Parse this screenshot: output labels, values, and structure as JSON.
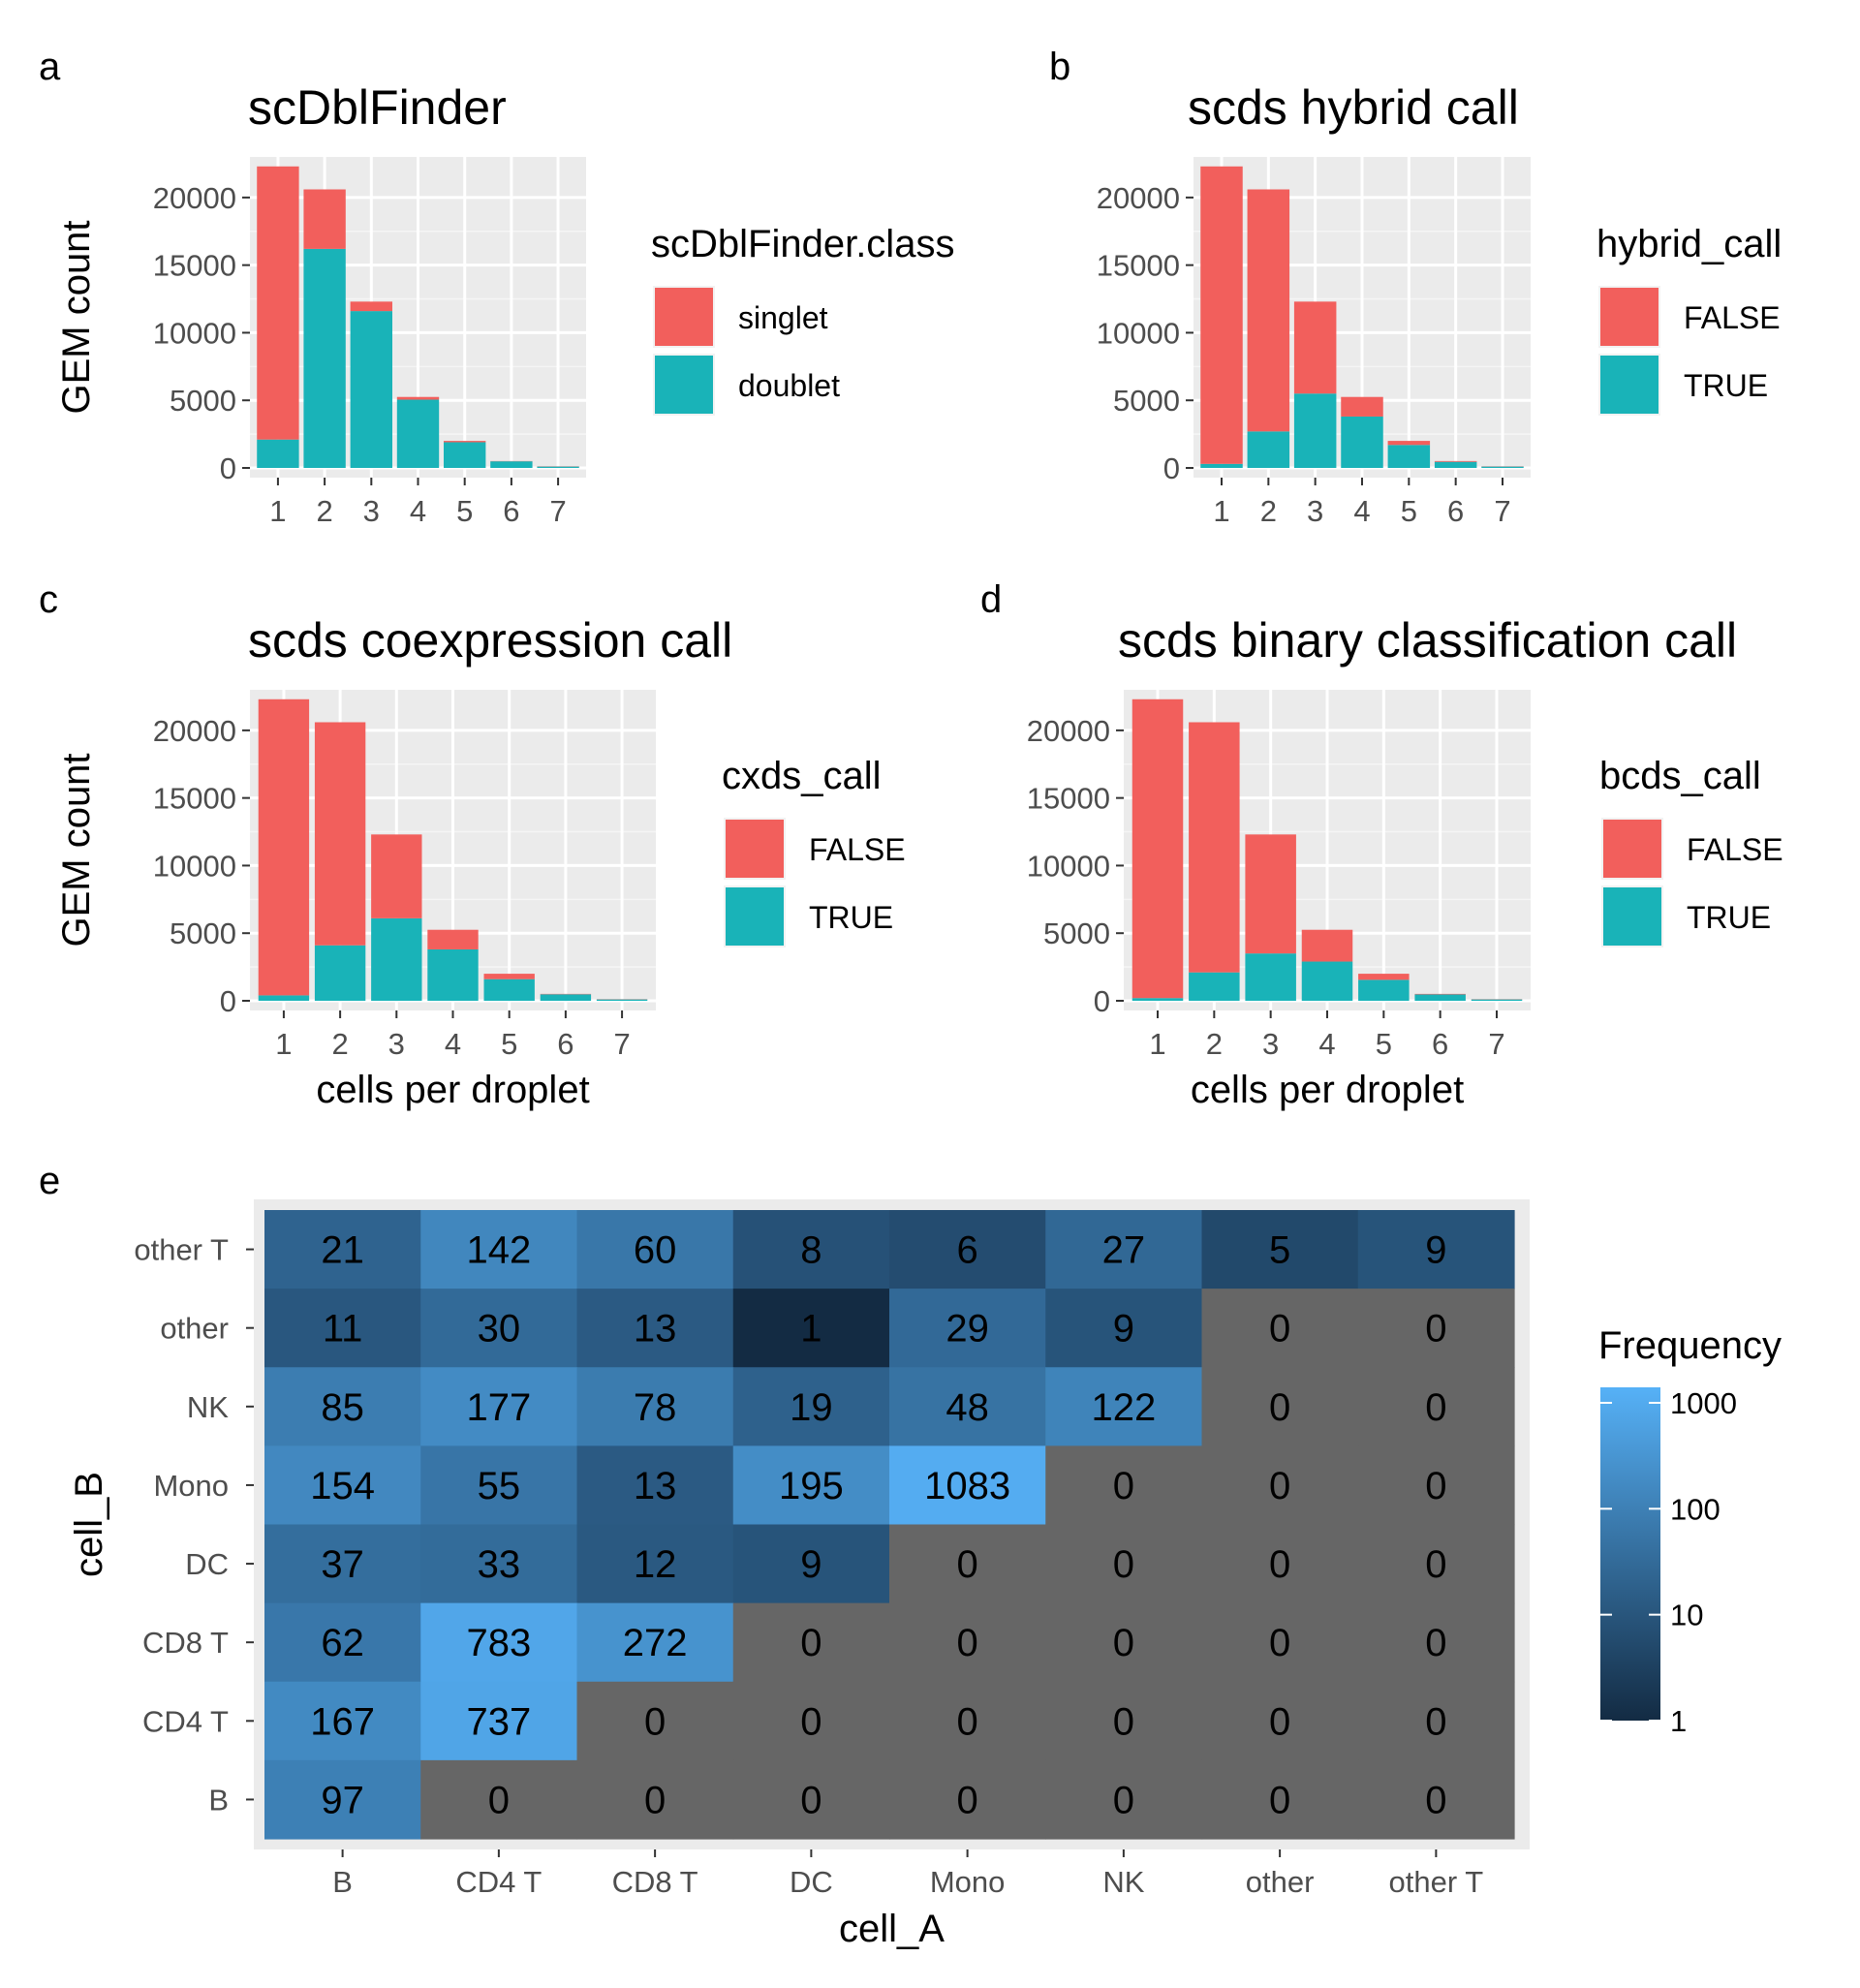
{
  "chart_data": [
    {
      "panel": "a",
      "type": "bar",
      "stacked": true,
      "title": "scDblFinder",
      "xlabel": "",
      "ylabel": "GEM count",
      "categories": [
        "1",
        "2",
        "3",
        "4",
        "5",
        "6",
        "7"
      ],
      "yticks": [
        0,
        5000,
        10000,
        15000,
        20000
      ],
      "ylim": [
        0,
        23000
      ],
      "grid": true,
      "legend_position": "right",
      "legend_title": "scDblFinder.class",
      "series": [
        {
          "name": "doublet",
          "color": "#19B3B8",
          "values": [
            2100,
            16200,
            11600,
            5050,
            1900,
            490,
            100
          ]
        },
        {
          "name": "singlet",
          "color": "#F25F5C",
          "values": [
            20200,
            4400,
            700,
            200,
            100,
            20,
            20
          ]
        }
      ],
      "legend": [
        "singlet",
        "doublet"
      ]
    },
    {
      "panel": "b",
      "type": "bar",
      "stacked": true,
      "title": "scds hybrid call",
      "xlabel": "",
      "ylabel": "",
      "categories": [
        "1",
        "2",
        "3",
        "4",
        "5",
        "6",
        "7"
      ],
      "yticks": [
        0,
        5000,
        10000,
        15000,
        20000
      ],
      "ylim": [
        0,
        23000
      ],
      "grid": true,
      "legend_position": "right",
      "legend_title": "hybrid_call",
      "series": [
        {
          "name": "TRUE",
          "color": "#19B3B8",
          "values": [
            300,
            2700,
            5500,
            3800,
            1700,
            450,
            100
          ]
        },
        {
          "name": "FALSE",
          "color": "#F25F5C",
          "values": [
            22000,
            17900,
            6800,
            1450,
            300,
            60,
            20
          ]
        }
      ],
      "legend": [
        "FALSE",
        "TRUE"
      ]
    },
    {
      "panel": "c",
      "type": "bar",
      "stacked": true,
      "title": "scds coexpression call",
      "xlabel": "cells per droplet",
      "ylabel": "GEM count",
      "categories": [
        "1",
        "2",
        "3",
        "4",
        "5",
        "6",
        "7"
      ],
      "yticks": [
        0,
        5000,
        10000,
        15000,
        20000
      ],
      "ylim": [
        0,
        23000
      ],
      "grid": true,
      "legend_position": "right",
      "legend_title": "cxds_call",
      "series": [
        {
          "name": "TRUE",
          "color": "#19B3B8",
          "values": [
            400,
            4100,
            6100,
            3800,
            1600,
            480,
            100
          ]
        },
        {
          "name": "FALSE",
          "color": "#F25F5C",
          "values": [
            21900,
            16500,
            6200,
            1450,
            400,
            30,
            20
          ]
        }
      ],
      "legend": [
        "FALSE",
        "TRUE"
      ]
    },
    {
      "panel": "d",
      "type": "bar",
      "stacked": true,
      "title": "scds binary classification call",
      "xlabel": "cells per droplet",
      "ylabel": "",
      "categories": [
        "1",
        "2",
        "3",
        "4",
        "5",
        "6",
        "7"
      ],
      "yticks": [
        0,
        5000,
        10000,
        15000,
        20000
      ],
      "ylim": [
        0,
        23000
      ],
      "grid": true,
      "legend_position": "right",
      "legend_title": "bcds_call",
      "series": [
        {
          "name": "TRUE",
          "color": "#19B3B8",
          "values": [
            200,
            2100,
            3500,
            2900,
            1550,
            470,
            100
          ]
        },
        {
          "name": "FALSE",
          "color": "#F25F5C",
          "values": [
            22100,
            18500,
            8800,
            2350,
            450,
            40,
            20
          ]
        }
      ],
      "legend": [
        "FALSE",
        "TRUE"
      ]
    },
    {
      "panel": "e",
      "type": "heatmap",
      "title": "",
      "xlabel": "cell_A",
      "ylabel": "cell_B",
      "x": [
        "B",
        "CD4 T",
        "CD8 T",
        "DC",
        "Mono",
        "NK",
        "other",
        "other T"
      ],
      "y": [
        "other T",
        "other",
        "NK",
        "Mono",
        "DC",
        "CD8 T",
        "CD4 T",
        "B"
      ],
      "values": [
        [
          21,
          142,
          60,
          8,
          6,
          27,
          5,
          9
        ],
        [
          11,
          30,
          13,
          1,
          29,
          9,
          0,
          0
        ],
        [
          85,
          177,
          78,
          19,
          48,
          122,
          0,
          0
        ],
        [
          154,
          55,
          13,
          195,
          1083,
          0,
          0,
          0
        ],
        [
          37,
          33,
          12,
          9,
          0,
          0,
          0,
          0
        ],
        [
          62,
          783,
          272,
          0,
          0,
          0,
          0,
          0
        ],
        [
          167,
          737,
          0,
          0,
          0,
          0,
          0,
          0
        ],
        [
          97,
          0,
          0,
          0,
          0,
          0,
          0,
          0
        ]
      ],
      "scale": "log10",
      "legend_title": "Frequency",
      "legend_ticks": [
        "1000",
        "100",
        "10",
        "1"
      ],
      "colorbar_range": [
        1,
        1400
      ],
      "colors": {
        "low": "#132B43",
        "high": "#56B1F7",
        "zero": "#666666",
        "panel": "#EBEBEB"
      }
    }
  ],
  "panel_letters": [
    "a",
    "b",
    "c",
    "d",
    "e"
  ],
  "colors": {
    "singlet": "#F25F5C",
    "doublet": "#19B3B8",
    "panel_bg": "#EBEBEB",
    "grid": "#FFFFFF",
    "axis_text": "#4D4D4D"
  }
}
